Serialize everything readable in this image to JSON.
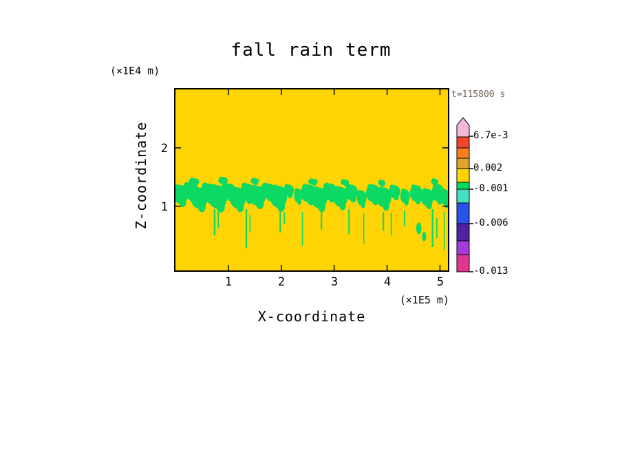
{
  "title": "fall rain term",
  "annotations": {
    "time": "t=115800 s",
    "y_unit": "(×1E4 m)",
    "x_unit": "(×1E5 m)"
  },
  "axes": {
    "xlabel": "X-coordinate",
    "ylabel": "Z-coordinate",
    "x_ticks": [
      "1",
      "2",
      "3",
      "4",
      "5"
    ],
    "y_ticks": [
      "2",
      "1"
    ]
  },
  "colorbar": {
    "labels": [
      "6.7e-3",
      "0.002",
      "-0.001",
      "-0.006",
      "-0.013"
    ],
    "tick_values": [
      0.0067,
      0.002,
      -0.001,
      -0.006,
      -0.013
    ],
    "arrow_color": "#F5B8D8",
    "segments": [
      {
        "from": -0.013,
        "to": -0.0105,
        "color": "#E0368F"
      },
      {
        "from": -0.0105,
        "to": -0.0085,
        "color": "#A43BDA"
      },
      {
        "from": -0.0085,
        "to": -0.006,
        "color": "#4E22A0"
      },
      {
        "from": -0.006,
        "to": -0.003,
        "color": "#2A52EC"
      },
      {
        "from": -0.003,
        "to": -0.001,
        "color": "#45E0C0"
      },
      {
        "from": -0.001,
        "to": 0.0,
        "color": "#0CD964"
      },
      {
        "from": 0.0,
        "to": 0.002,
        "color": "#FFD405"
      },
      {
        "from": 0.002,
        "to": 0.0035,
        "color": "#DFA62B"
      },
      {
        "from": 0.0035,
        "to": 0.005,
        "color": "#F87F1E"
      },
      {
        "from": 0.005,
        "to": 0.0067,
        "color": "#F4442A"
      }
    ]
  },
  "chart_data": {
    "type": "heatmap",
    "title": "fall rain term",
    "xlabel": "X-coordinate",
    "ylabel": "Z-coordinate",
    "x_unit_factor": "×1E5 m",
    "z_unit_factor": "×1E4 m",
    "time_annotation": "t=115800 s",
    "x_ticks": [
      1,
      2,
      3,
      4,
      5
    ],
    "z_ticks": [
      1,
      2
    ],
    "x_range": [
      0,
      5.15
    ],
    "z_range": [
      -0.1,
      3.0
    ],
    "contour_levels": [
      -0.013,
      -0.006,
      -0.001,
      0.002,
      0.0067
    ],
    "background_value_range": [
      0.0,
      0.002
    ],
    "band_value_range": [
      -0.001,
      0.0
    ],
    "background_color": "#FFD405",
    "band_color": "#0CD964",
    "band_blobs": [
      [
        0.1,
        1.2,
        0.14,
        0.16
      ],
      [
        0.28,
        1.26,
        0.16,
        0.14
      ],
      [
        0.45,
        1.14,
        0.16,
        0.18
      ],
      [
        0.62,
        1.24,
        0.15,
        0.15
      ],
      [
        0.8,
        1.16,
        0.18,
        0.2
      ],
      [
        1.0,
        1.26,
        0.15,
        0.13
      ],
      [
        1.18,
        1.14,
        0.15,
        0.18
      ],
      [
        1.36,
        1.24,
        0.14,
        0.15
      ],
      [
        1.55,
        1.18,
        0.16,
        0.17
      ],
      [
        1.75,
        1.26,
        0.15,
        0.13
      ],
      [
        1.95,
        1.16,
        0.16,
        0.19
      ],
      [
        2.14,
        1.27,
        0.1,
        0.1
      ],
      [
        2.32,
        1.18,
        0.08,
        0.12
      ],
      [
        2.52,
        1.22,
        0.16,
        0.15
      ],
      [
        2.72,
        1.14,
        0.15,
        0.18
      ],
      [
        2.92,
        1.25,
        0.15,
        0.14
      ],
      [
        3.12,
        1.16,
        0.14,
        0.17
      ],
      [
        3.32,
        1.24,
        0.13,
        0.13
      ],
      [
        3.52,
        1.14,
        0.09,
        0.13
      ],
      [
        3.74,
        1.22,
        0.14,
        0.15
      ],
      [
        3.94,
        1.15,
        0.14,
        0.17
      ],
      [
        4.14,
        1.25,
        0.11,
        0.11
      ],
      [
        4.34,
        1.17,
        0.09,
        0.12
      ],
      [
        4.55,
        1.22,
        0.12,
        0.14
      ],
      [
        4.76,
        1.15,
        0.12,
        0.15
      ],
      [
        4.96,
        1.23,
        0.12,
        0.15
      ],
      [
        5.1,
        1.15,
        0.08,
        0.14
      ],
      [
        0.35,
        1.42,
        0.1,
        0.06
      ],
      [
        0.9,
        1.44,
        0.09,
        0.06
      ],
      [
        1.5,
        1.43,
        0.08,
        0.05
      ],
      [
        2.6,
        1.42,
        0.09,
        0.05
      ],
      [
        3.2,
        1.41,
        0.08,
        0.05
      ],
      [
        3.9,
        1.4,
        0.07,
        0.05
      ],
      [
        4.9,
        1.42,
        0.07,
        0.05
      ]
    ],
    "streaks": [
      {
        "x": 0.74,
        "z1": 0.95,
        "z2": 0.5,
        "w": 0.03
      },
      {
        "x": 0.81,
        "z1": 0.9,
        "z2": 0.62,
        "w": 0.024
      },
      {
        "x": 1.34,
        "z1": 0.95,
        "z2": 0.28,
        "w": 0.03
      },
      {
        "x": 1.41,
        "z1": 0.85,
        "z2": 0.55,
        "w": 0.022
      },
      {
        "x": 1.98,
        "z1": 0.95,
        "z2": 0.55,
        "w": 0.028
      },
      {
        "x": 2.06,
        "z1": 0.9,
        "z2": 0.7,
        "w": 0.022
      },
      {
        "x": 2.4,
        "z1": 0.9,
        "z2": 0.32,
        "w": 0.018
      },
      {
        "x": 2.76,
        "z1": 0.92,
        "z2": 0.6,
        "w": 0.028
      },
      {
        "x": 3.28,
        "z1": 0.95,
        "z2": 0.52,
        "w": 0.026
      },
      {
        "x": 3.56,
        "z1": 0.88,
        "z2": 0.36,
        "w": 0.018
      },
      {
        "x": 3.93,
        "z1": 0.9,
        "z2": 0.58,
        "w": 0.028
      },
      {
        "x": 4.08,
        "z1": 0.88,
        "z2": 0.5,
        "w": 0.024
      },
      {
        "x": 4.33,
        "z1": 0.92,
        "z2": 0.66,
        "w": 0.026
      },
      {
        "x": 4.86,
        "z1": 0.95,
        "z2": 0.3,
        "w": 0.03
      },
      {
        "x": 4.94,
        "z1": 0.8,
        "z2": 0.45,
        "w": 0.022
      },
      {
        "x": 5.08,
        "z1": 0.9,
        "z2": 0.25,
        "w": 0.02
      }
    ],
    "spots": [
      {
        "x": 4.6,
        "z": 0.62,
        "rx": 0.05,
        "rz": 0.1
      },
      {
        "x": 4.7,
        "z": 0.48,
        "rx": 0.04,
        "rz": 0.08
      }
    ]
  }
}
